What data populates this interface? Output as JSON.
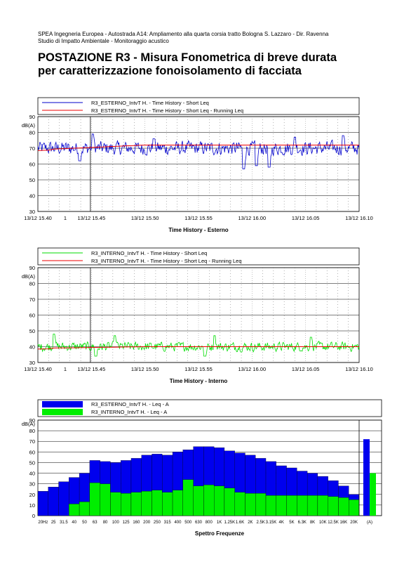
{
  "header": {
    "line1": "SPEA Ingegneria Europea - Autostrada A14: Ampliamento alla quarta corsia tratto Bologna S. Lazzaro - Dir. Ravenna",
    "line2": "Studio di Impatto Ambientale - Monitoraggio acustico",
    "title1": "POSTAZIONE R3 - Misura Fonometrica di breve durata",
    "title2": "per caratterizzazione fonoisolamento di facciata"
  },
  "chart_data": [
    {
      "type": "line",
      "title": "Time History - Esterno",
      "ylabel": "dB(A)",
      "ylim": [
        30,
        90
      ],
      "yticks": [
        "90",
        "80",
        "70",
        "60",
        "50",
        "40",
        "30"
      ],
      "xlim": [
        "13/12 15.40",
        "13/12 16.10"
      ],
      "xticks": [
        "13/12 15.40",
        "13/12 15.45",
        "13/12 15.50",
        "13/12 15.55",
        "13/12 16.00",
        "13/12 16.05",
        "13/12 16.10"
      ],
      "cursor_label": "1",
      "series": [
        {
          "name": "R3_ESTERNO_IntvT H. - Time History - Short Leq",
          "color": "#0000cc",
          "mean": 70,
          "spread": 4.5,
          "dips": [
            {
              "t": 0.13,
              "v": 62
            },
            {
              "t": 0.64,
              "v": 57
            },
            {
              "t": 0.68,
              "v": 59
            },
            {
              "t": 0.72,
              "v": 58
            },
            {
              "t": 0.95,
              "v": 62
            }
          ],
          "peaks": [
            {
              "t": 0.17,
              "v": 79
            },
            {
              "t": 0.36,
              "v": 76
            },
            {
              "t": 0.8,
              "v": 77
            },
            {
              "t": 0.95,
              "v": 78
            }
          ]
        },
        {
          "name": "R3_ESTERNO_IntvT H. - Time History - Short Leq - Running Leq",
          "color": "#ee0000",
          "start": 69,
          "end": 72
        }
      ]
    },
    {
      "type": "line",
      "title": "Time History - Interno",
      "ylabel": "dB(A)",
      "ylim": [
        30,
        90
      ],
      "yticks": [
        "90",
        "80",
        "70",
        "60",
        "50",
        "40",
        "30"
      ],
      "xlim": [
        "13/12 15.40",
        "13/12 16.10"
      ],
      "xticks": [
        "13/12 15.40",
        "13/12 15.45",
        "13/12 15.50",
        "13/12 15.55",
        "13/12 16.00",
        "13/12 16.05",
        "13/12 16.10"
      ],
      "cursor_label": "1",
      "series": [
        {
          "name": "R3_INTERNO_IntvT H. - Time History - Short Leq",
          "color": "#00dd00",
          "mean": 40,
          "spread": 3,
          "dips": [
            {
              "t": 0.18,
              "v": 34
            },
            {
              "t": 0.52,
              "v": 34
            }
          ],
          "peaks": [
            {
              "t": 0.05,
              "v": 48
            },
            {
              "t": 0.24,
              "v": 47
            },
            {
              "t": 0.55,
              "v": 47
            },
            {
              "t": 0.85,
              "v": 46
            }
          ]
        },
        {
          "name": "R3_INTERNO_IntvT H. - Time History - Short Leq - Running Leq",
          "color": "#ee0000",
          "start": 39,
          "end": 40
        }
      ]
    },
    {
      "type": "bar",
      "title": "Spettro Frequenze",
      "ylabel": "dB(A)",
      "ylim": [
        0,
        90
      ],
      "yticks": [
        "90",
        "80",
        "70",
        "60",
        "50",
        "40",
        "30",
        "20",
        "10",
        "0"
      ],
      "categories": [
        "20Hz",
        "25",
        "31.5",
        "40",
        "50",
        "63",
        "80",
        "100",
        "125",
        "160",
        "200",
        "250",
        "315",
        "400",
        "500",
        "630",
        "800",
        "1K",
        "1.25K",
        "1.6K",
        "2K",
        "2.5K",
        "3.15K",
        "4K",
        "5K",
        "6.3K",
        "8K",
        "10K",
        "12.5K",
        "16K",
        "20K",
        "(A)"
      ],
      "category_labels": [
        "20Hz",
        "25",
        "31.5",
        "40",
        "50",
        "63",
        "80",
        "100",
        "125",
        "160",
        "200",
        "250",
        "315",
        "400",
        "500",
        "630",
        "800",
        "1K",
        "1.25K",
        "1.6K",
        "2K",
        "2.5K",
        "3.15K",
        "4K",
        "5K",
        "6.3K",
        "8K",
        "10K",
        "12.5K",
        "16K",
        "20K",
        "(A)"
      ],
      "series": [
        {
          "name": "R3_ESTERNO_IntvT H. - Leq - A",
          "color": "#0000ee",
          "values": [
            23,
            27,
            32,
            36,
            40,
            52,
            51,
            50,
            52,
            54,
            57,
            58,
            57,
            60,
            62,
            65,
            65,
            64,
            61,
            59,
            57,
            54,
            51,
            47,
            45,
            42,
            40,
            37,
            33,
            28,
            20,
            72
          ]
        },
        {
          "name": "R3_INTERNO_IntvT H. - Leq - A",
          "color": "#00ee00",
          "values": [
            0,
            0,
            0,
            11,
            13,
            31,
            30,
            22,
            21,
            22,
            23,
            24,
            22,
            24,
            34,
            28,
            29,
            28,
            26,
            22,
            21,
            21,
            19,
            19,
            19,
            19,
            19,
            19,
            18,
            17,
            15,
            40
          ]
        }
      ]
    }
  ]
}
